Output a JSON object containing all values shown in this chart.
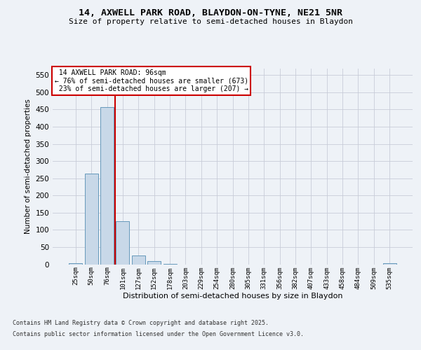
{
  "title1": "14, AXWELL PARK ROAD, BLAYDON-ON-TYNE, NE21 5NR",
  "title2": "Size of property relative to semi-detached houses in Blaydon",
  "categories": [
    "25sqm",
    "50sqm",
    "76sqm",
    "101sqm",
    "127sqm",
    "152sqm",
    "178sqm",
    "203sqm",
    "229sqm",
    "254sqm",
    "280sqm",
    "305sqm",
    "331sqm",
    "356sqm",
    "382sqm",
    "407sqm",
    "433sqm",
    "458sqm",
    "484sqm",
    "509sqm",
    "535sqm"
  ],
  "values": [
    4,
    263,
    457,
    126,
    26,
    9,
    1,
    0,
    0,
    0,
    0,
    0,
    0,
    0,
    0,
    0,
    0,
    0,
    0,
    0,
    3
  ],
  "bar_color": "#c8d8e8",
  "bar_edge_color": "#6699bb",
  "property_label": "14 AXWELL PARK ROAD: 96sqm",
  "smaller_pct": "76%",
  "smaller_count": 673,
  "larger_pct": "23%",
  "larger_count": 207,
  "ylabel": "Number of semi-detached properties",
  "xlabel": "Distribution of semi-detached houses by size in Blaydon",
  "annotation_box_color": "#cc0000",
  "footnote1": "Contains HM Land Registry data © Crown copyright and database right 2025.",
  "footnote2": "Contains public sector information licensed under the Open Government Licence v3.0.",
  "ylim": [
    0,
    570
  ],
  "yticks": [
    0,
    50,
    100,
    150,
    200,
    250,
    300,
    350,
    400,
    450,
    500,
    550
  ],
  "bg_color": "#eef2f7",
  "plot_bg_color": "#eef2f7",
  "grid_color": "#c8ccd8",
  "vline_x": 2.5,
  "vline_color": "#cc0000"
}
